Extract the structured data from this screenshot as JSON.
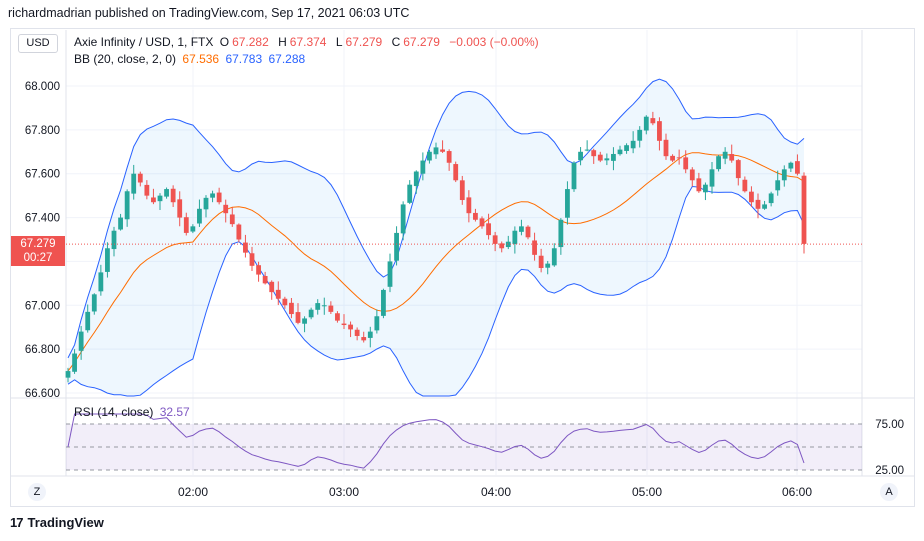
{
  "header": {
    "publish_line": "richardmadrian published on TradingView.com, Sep 17, 2021 06:03 UTC"
  },
  "toolbar": {
    "currency_button": "USD"
  },
  "legend": {
    "symbol": "Axie Infinity / USD, 1, FTX",
    "open_label": "O",
    "open": "67.282",
    "high_label": "H",
    "high": "67.374",
    "low_label": "L",
    "low": "67.279",
    "close_label": "C",
    "close": "67.279",
    "change": "−0.003 (−0.00%)",
    "bb_label": "BB (20, close, 2, 0)",
    "bb_basis": "67.536",
    "bb_upper": "67.783",
    "bb_lower": "67.288",
    "rsi_label": "RSI (14, close)",
    "rsi_value": "32.57"
  },
  "price_tag": {
    "price": "67.279",
    "countdown": "00:27"
  },
  "footer": {
    "brand": "TradingView",
    "logo_text": "17"
  },
  "axis_buttons": {
    "left": "Z",
    "right": "A"
  },
  "colors": {
    "up": "#26a69a",
    "down": "#ef5350",
    "band": "#2962ff",
    "basis": "#ff6d00",
    "rsi": "#7e57c2"
  },
  "chart_data": {
    "type": "candlestick",
    "price_axis": {
      "ylim": [
        66.6,
        68.0
      ],
      "ticks": [
        "68.000",
        "67.800",
        "67.600",
        "67.400",
        "67.200",
        "67.000",
        "66.800",
        "66.600"
      ]
    },
    "time_axis": {
      "ticks": [
        "02:00",
        "03:00",
        "04:00",
        "05:00",
        "06:00"
      ]
    },
    "rsi_axis": {
      "ticks": [
        "75.00",
        "25.00"
      ]
    },
    "last_price": 67.279,
    "close_series": [
      66.7,
      66.78,
      66.88,
      66.97,
      67.05,
      67.15,
      67.26,
      67.34,
      67.4,
      67.52,
      67.6,
      67.56,
      67.5,
      67.47,
      67.5,
      67.53,
      67.47,
      67.4,
      67.33,
      67.36,
      67.44,
      67.49,
      67.51,
      67.47,
      67.42,
      67.37,
      67.3,
      67.24,
      67.18,
      67.14,
      67.1,
      67.06,
      67.03,
      67.0,
      66.96,
      66.92,
      66.94,
      66.98,
      67.01,
      67.0,
      66.97,
      66.93,
      66.91,
      66.89,
      66.86,
      66.84,
      66.88,
      66.95,
      67.07,
      67.2,
      67.33,
      67.46,
      67.55,
      67.61,
      67.66,
      67.7,
      67.72,
      67.7,
      67.65,
      67.57,
      67.48,
      67.42,
      67.39,
      67.36,
      67.32,
      67.28,
      67.26,
      67.29,
      67.34,
      67.36,
      67.31,
      67.23,
      67.17,
      67.19,
      67.26,
      67.39,
      67.53,
      67.65,
      67.7,
      67.71,
      67.68,
      67.66,
      67.67,
      67.69,
      67.71,
      67.73,
      67.75,
      67.8,
      67.86,
      67.83,
      67.75,
      67.68,
      67.66,
      67.67,
      67.62,
      67.57,
      67.52,
      67.55,
      67.62,
      67.68,
      67.7,
      67.66,
      67.58,
      67.52,
      67.47,
      67.44,
      67.46,
      67.51,
      67.57,
      67.62,
      67.65,
      67.6,
      67.28
    ]
  }
}
